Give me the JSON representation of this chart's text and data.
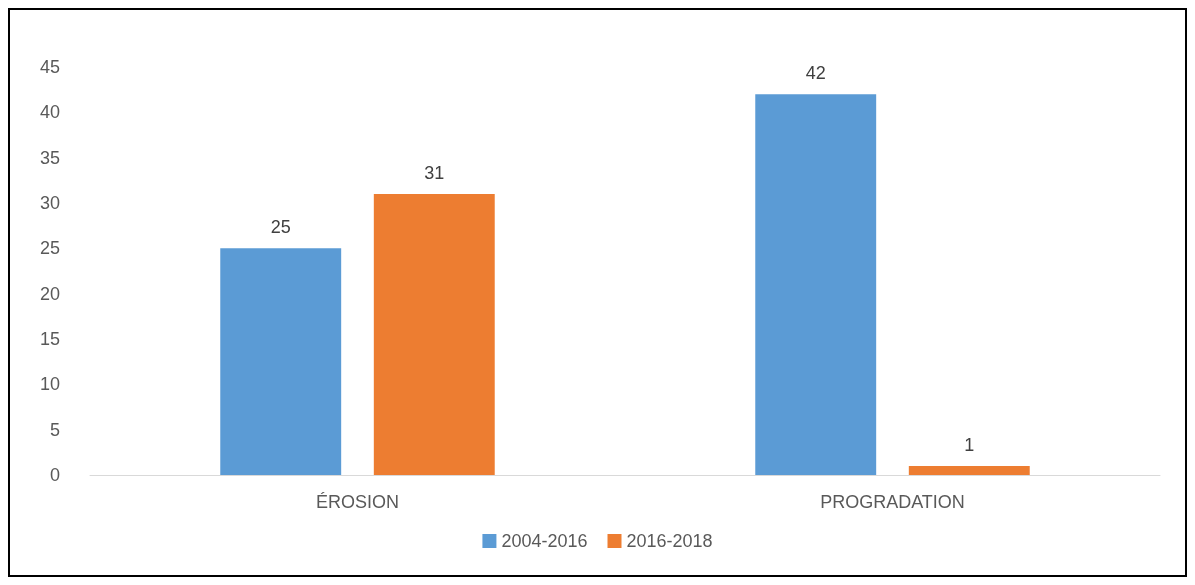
{
  "chart_data": {
    "type": "bar",
    "categories": [
      "ÉROSION",
      "PROGRADATION"
    ],
    "series": [
      {
        "name": "2004-2016",
        "color": "#5b9bd5",
        "values": [
          25,
          42
        ]
      },
      {
        "name": "2016-2018",
        "color": "#ed7d31",
        "values": [
          31,
          1
        ]
      }
    ],
    "ylim": [
      0,
      45
    ],
    "yticks": [
      0,
      5,
      10,
      15,
      20,
      25,
      30,
      35,
      40,
      45
    ],
    "grid": false,
    "legend": "bottom",
    "data_labels": true
  }
}
